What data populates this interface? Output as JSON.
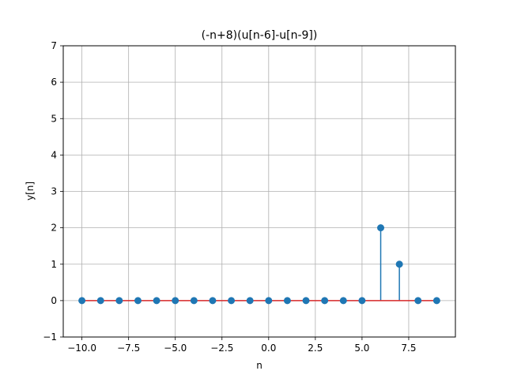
{
  "chart_data": {
    "type": "stem",
    "title": "(-n+8)(u[n-6]-u[n-9])",
    "xlabel": "n",
    "ylabel": "y[n]",
    "xlim": [
      -11,
      10
    ],
    "ylim": [
      -1,
      7
    ],
    "x_ticks": [
      -10.0,
      -7.5,
      -5.0,
      -2.5,
      0.0,
      2.5,
      5.0,
      7.5
    ],
    "x_tick_labels": [
      "−10.0",
      "−7.5",
      "−5.0",
      "−2.5",
      "0.0",
      "2.5",
      "5.0",
      "7.5"
    ],
    "y_ticks": [
      -1,
      0,
      1,
      2,
      3,
      4,
      5,
      6,
      7
    ],
    "y_tick_labels": [
      "−1",
      "0",
      "1",
      "2",
      "3",
      "4",
      "5",
      "6",
      "7"
    ],
    "grid": true,
    "x": [
      -10,
      -9,
      -8,
      -7,
      -6,
      -5,
      -4,
      -3,
      -2,
      -1,
      0,
      1,
      2,
      3,
      4,
      5,
      6,
      7,
      8,
      9
    ],
    "y": [
      0,
      0,
      0,
      0,
      0,
      0,
      0,
      0,
      0,
      0,
      0,
      0,
      0,
      0,
      0,
      0,
      2,
      1,
      0,
      0
    ],
    "colors": {
      "marker": "#1f77b4",
      "stem": "#1f77b4",
      "baseline": "#d62728",
      "grid": "#b0b0b0"
    }
  }
}
